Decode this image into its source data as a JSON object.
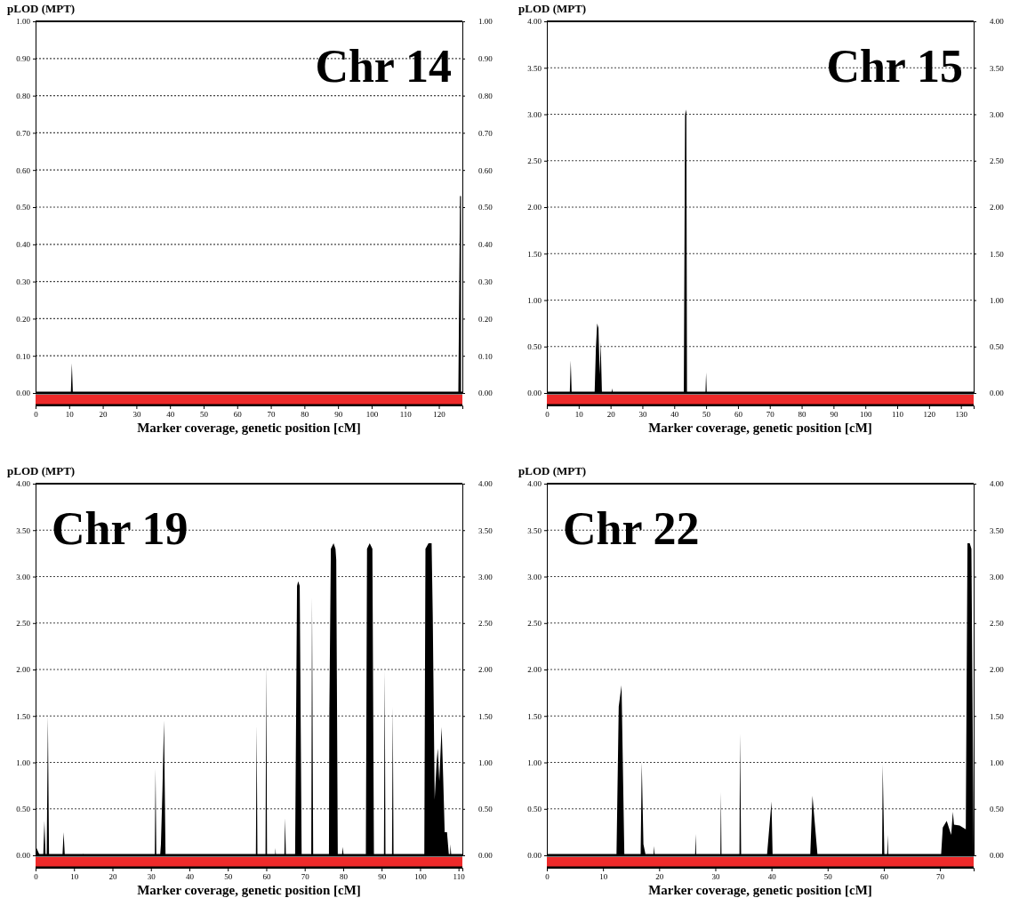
{
  "chart_data": [
    {
      "type": "area",
      "title": "Chr 14",
      "ylabel": "pLOD (MPT)",
      "xlabel": "Marker coverage, genetic position [cM]",
      "grid": "y",
      "xlim": [
        0,
        127
      ],
      "xticks": [
        0,
        10,
        20,
        30,
        40,
        50,
        60,
        70,
        80,
        90,
        100,
        110,
        120
      ],
      "ylim": [
        0,
        1
      ],
      "yticks": [
        {
          "value": 0,
          "label": "0.00"
        },
        {
          "value": 0.1,
          "label": "0.10"
        },
        {
          "value": 0.2,
          "label": "0.20"
        },
        {
          "value": 0.3,
          "label": "0.30"
        },
        {
          "value": 0.4,
          "label": "0.40"
        },
        {
          "value": 0.5,
          "label": "0.50"
        },
        {
          "value": 0.6,
          "label": "0.60"
        },
        {
          "value": 0.7,
          "label": "0.70"
        },
        {
          "value": 0.8,
          "label": "0.80"
        },
        {
          "value": 0.9,
          "label": "0.90"
        },
        {
          "value": 1,
          "label": "1.00"
        }
      ],
      "y2lim": [
        0,
        1
      ],
      "y2ticks": [
        {
          "value": 0,
          "label": "0.00"
        },
        {
          "value": 0.1,
          "label": "0.10"
        },
        {
          "value": 0.2,
          "label": "0.20"
        },
        {
          "value": 0.3,
          "label": "0.30"
        },
        {
          "value": 0.4,
          "label": "0.40"
        },
        {
          "value": 0.5,
          "label": "0.50"
        },
        {
          "value": 0.6,
          "label": "0.60"
        },
        {
          "value": 0.7,
          "label": "0.70"
        },
        {
          "value": 0.8,
          "label": "0.80"
        },
        {
          "value": 0.9,
          "label": "0.90"
        },
        {
          "value": 1,
          "label": "1.00"
        }
      ],
      "series": [
        {
          "color": "#000000",
          "x": [
            0,
            10.5,
            10.8,
            11.1,
            125.8,
            126.3,
            126.6
          ],
          "values": [
            0,
            0,
            0.08,
            0,
            0,
            0.53,
            0.53
          ]
        }
      ]
    },
    {
      "type": "area",
      "title": "Chr 15",
      "ylabel": "pLOD (MPT)",
      "xlabel": "Marker coverage, genetic position [cM]",
      "grid": "y",
      "xlim": [
        0,
        134
      ],
      "xticks": [
        0,
        10,
        20,
        30,
        40,
        50,
        60,
        70,
        80,
        90,
        100,
        110,
        120,
        130
      ],
      "ylim": [
        0,
        4
      ],
      "yticks": [
        {
          "value": 0,
          "label": "0.00"
        },
        {
          "value": 0.5,
          "label": "0.50"
        },
        {
          "value": 1,
          "label": "1.00"
        },
        {
          "value": 1.5,
          "label": "1.50"
        },
        {
          "value": 2,
          "label": "2.00"
        },
        {
          "value": 2.5,
          "label": "2.50"
        },
        {
          "value": 3,
          "label": "3.00"
        },
        {
          "value": 3.5,
          "label": "3.50"
        },
        {
          "value": 4,
          "label": "4.00"
        }
      ],
      "y2lim": [
        0,
        4
      ],
      "y2ticks": [
        {
          "value": 0,
          "label": "0.00"
        },
        {
          "value": 0.5,
          "label": "0.50"
        },
        {
          "value": 1,
          "label": "1.00"
        },
        {
          "value": 1.5,
          "label": "1.50"
        },
        {
          "value": 2,
          "label": "2.00"
        },
        {
          "value": 2.5,
          "label": "2.50"
        },
        {
          "value": 3,
          "label": "3.00"
        },
        {
          "value": 3.5,
          "label": "3.50"
        },
        {
          "value": 4,
          "label": "4.00"
        }
      ],
      "series": [
        {
          "color": "#000000",
          "x": [
            0,
            7.2,
            7.5,
            7.8,
            15.0,
            15.4,
            15.8,
            16.2,
            16.6,
            16.9,
            17.3,
            20.3,
            20.5,
            20.7,
            43.0,
            43.4,
            43.8,
            44.0,
            49.8,
            50.0,
            50.2,
            133
          ],
          "values": [
            0,
            0,
            0.35,
            0,
            0,
            0.48,
            0.75,
            0.7,
            0.2,
            0.55,
            0,
            0,
            0.05,
            0,
            0,
            3.0,
            3.05,
            0,
            0,
            0.22,
            0,
            0
          ]
        }
      ]
    },
    {
      "type": "area",
      "title": "Chr 19",
      "ylabel": "pLOD (MPT)",
      "xlabel": "Marker coverage, genetic position [cM]",
      "grid": "y",
      "xlim": [
        0,
        111
      ],
      "xticks": [
        0,
        10,
        20,
        30,
        40,
        50,
        60,
        70,
        80,
        90,
        100,
        110
      ],
      "ylim": [
        0,
        4
      ],
      "yticks": [
        {
          "value": 0,
          "label": "0.00"
        },
        {
          "value": 0.5,
          "label": "0.50"
        },
        {
          "value": 1,
          "label": "1.00"
        },
        {
          "value": 1.5,
          "label": "1.50"
        },
        {
          "value": 2,
          "label": "2.00"
        },
        {
          "value": 2.5,
          "label": "2.50"
        },
        {
          "value": 3,
          "label": "3.00"
        },
        {
          "value": 3.5,
          "label": "3.50"
        },
        {
          "value": 4,
          "label": "4.00"
        }
      ],
      "y2lim": [
        0,
        4
      ],
      "y2ticks": [
        {
          "value": 0,
          "label": "0.00"
        },
        {
          "value": 0.5,
          "label": "0.50"
        },
        {
          "value": 1,
          "label": "1.00"
        },
        {
          "value": 1.5,
          "label": "1.50"
        },
        {
          "value": 2,
          "label": "2.00"
        },
        {
          "value": 2.5,
          "label": "2.50"
        },
        {
          "value": 3,
          "label": "3.00"
        },
        {
          "value": 3.5,
          "label": "3.50"
        },
        {
          "value": 4,
          "label": "4.00"
        }
      ],
      "series": [
        {
          "color": "#000000",
          "x": [
            0,
            1.1,
            2.0,
            2.3,
            2.6,
            2.9,
            3.2,
            3.5,
            7.0,
            7.3,
            7.6,
            12.2,
            12.3,
            12.4,
            31.0,
            31.2,
            31.4,
            32.4,
            32.6,
            33.0,
            33.4,
            33.8,
            57.3,
            57.5,
            57.7,
            59.8,
            60.0,
            60.2,
            62.3,
            62.4,
            62.5,
            64.7,
            64.9,
            65.1,
            67.5,
            68.0,
            68.3,
            68.7,
            69.2,
            71.7,
            71.9,
            72.2,
            76.3,
            76.4,
            76.8,
            77.5,
            78.0,
            78.2,
            78.6,
            79.7,
            79.9,
            80.1,
            85.9,
            86.2,
            86.9,
            87.6,
            88.0,
            90.6,
            90.8,
            91.0,
            92.7,
            92.9,
            93.1,
            101.1,
            101.4,
            102.2,
            103.0,
            103.3,
            103.8,
            104.3,
            104.6,
            105.0,
            105.6,
            106.0,
            106.4,
            107.0,
            107.5,
            107.8,
            107.9,
            108.1,
            111
          ],
          "values": [
            0.1,
            0,
            0,
            0.37,
            0,
            0,
            1.5,
            0,
            0,
            0.25,
            0,
            0,
            0.02,
            0,
            0,
            0.93,
            0,
            0,
            0.12,
            0.7,
            1.45,
            0,
            0,
            1.4,
            0,
            0,
            2.05,
            0,
            0,
            0.08,
            0,
            0,
            0.4,
            0,
            0,
            2.9,
            2.95,
            2.9,
            0,
            0,
            2.78,
            0,
            0,
            1.52,
            3.3,
            3.36,
            3.3,
            3.18,
            0,
            0,
            0.09,
            0,
            0,
            3.3,
            3.36,
            3.3,
            0,
            0,
            2.0,
            0,
            0,
            1.6,
            0,
            0,
            3.3,
            3.36,
            3.36,
            2.57,
            0.6,
            1.0,
            1.15,
            0.8,
            1.38,
            0.85,
            0.25,
            0.25,
            0,
            0,
            0.12,
            0,
            0
          ]
        }
      ]
    },
    {
      "type": "area",
      "title": "Chr 22",
      "ylabel": "pLOD (MPT)",
      "xlabel": "Marker coverage, genetic position [cM]",
      "grid": "y",
      "xlim": [
        0,
        76
      ],
      "xticks": [
        0,
        10,
        20,
        30,
        40,
        50,
        60,
        70
      ],
      "ylim": [
        0,
        4
      ],
      "yticks": [
        {
          "value": 0,
          "label": "0.00"
        },
        {
          "value": 0.5,
          "label": "0.50"
        },
        {
          "value": 1,
          "label": "1.00"
        },
        {
          "value": 1.5,
          "label": "1.50"
        },
        {
          "value": 2,
          "label": "2.00"
        },
        {
          "value": 2.5,
          "label": "2.50"
        },
        {
          "value": 3,
          "label": "3.00"
        },
        {
          "value": 3.5,
          "label": "3.50"
        },
        {
          "value": 4,
          "label": "4.00"
        }
      ],
      "y2lim": [
        0,
        4
      ],
      "y2ticks": [
        {
          "value": 0,
          "label": "0.00"
        },
        {
          "value": 0.5,
          "label": "0.50"
        },
        {
          "value": 1,
          "label": "1.00"
        },
        {
          "value": 1.5,
          "label": "1.50"
        },
        {
          "value": 2,
          "label": "2.00"
        },
        {
          "value": 2.5,
          "label": "2.50"
        },
        {
          "value": 3,
          "label": "3.00"
        },
        {
          "value": 3.5,
          "label": "3.50"
        },
        {
          "value": 4,
          "label": "4.00"
        }
      ],
      "series": [
        {
          "color": "#000000",
          "x": [
            0,
            12.4,
            12.8,
            13.3,
            13.8,
            16.7,
            16.9,
            17.2,
            17.6,
            19.0,
            19.1,
            19.2,
            26.4,
            26.5,
            26.6,
            30.9,
            31.0,
            31.1,
            34.3,
            34.4,
            34.6,
            39.2,
            40.0,
            40.2,
            46.9,
            47.3,
            48.2,
            59.7,
            59.8,
            60.1,
            60.6,
            60.7,
            60.8,
            70.2,
            70.5,
            71.2,
            72.0,
            72.3,
            72.5,
            73.5,
            74.6,
            74.9,
            75.3,
            75.6,
            76.0
          ],
          "values": [
            0,
            0,
            1.6,
            1.83,
            0,
            0,
            1.0,
            0.12,
            0,
            0,
            0.1,
            0,
            0,
            0.23,
            0,
            0,
            0.68,
            0,
            0,
            1.31,
            0,
            0,
            0.58,
            0,
            0,
            0.64,
            0,
            0,
            0.98,
            0,
            0,
            0.22,
            0,
            0,
            0.3,
            0.37,
            0.22,
            0.47,
            0.33,
            0.32,
            0.28,
            3.36,
            3.36,
            3.3,
            0
          ]
        }
      ]
    }
  ]
}
